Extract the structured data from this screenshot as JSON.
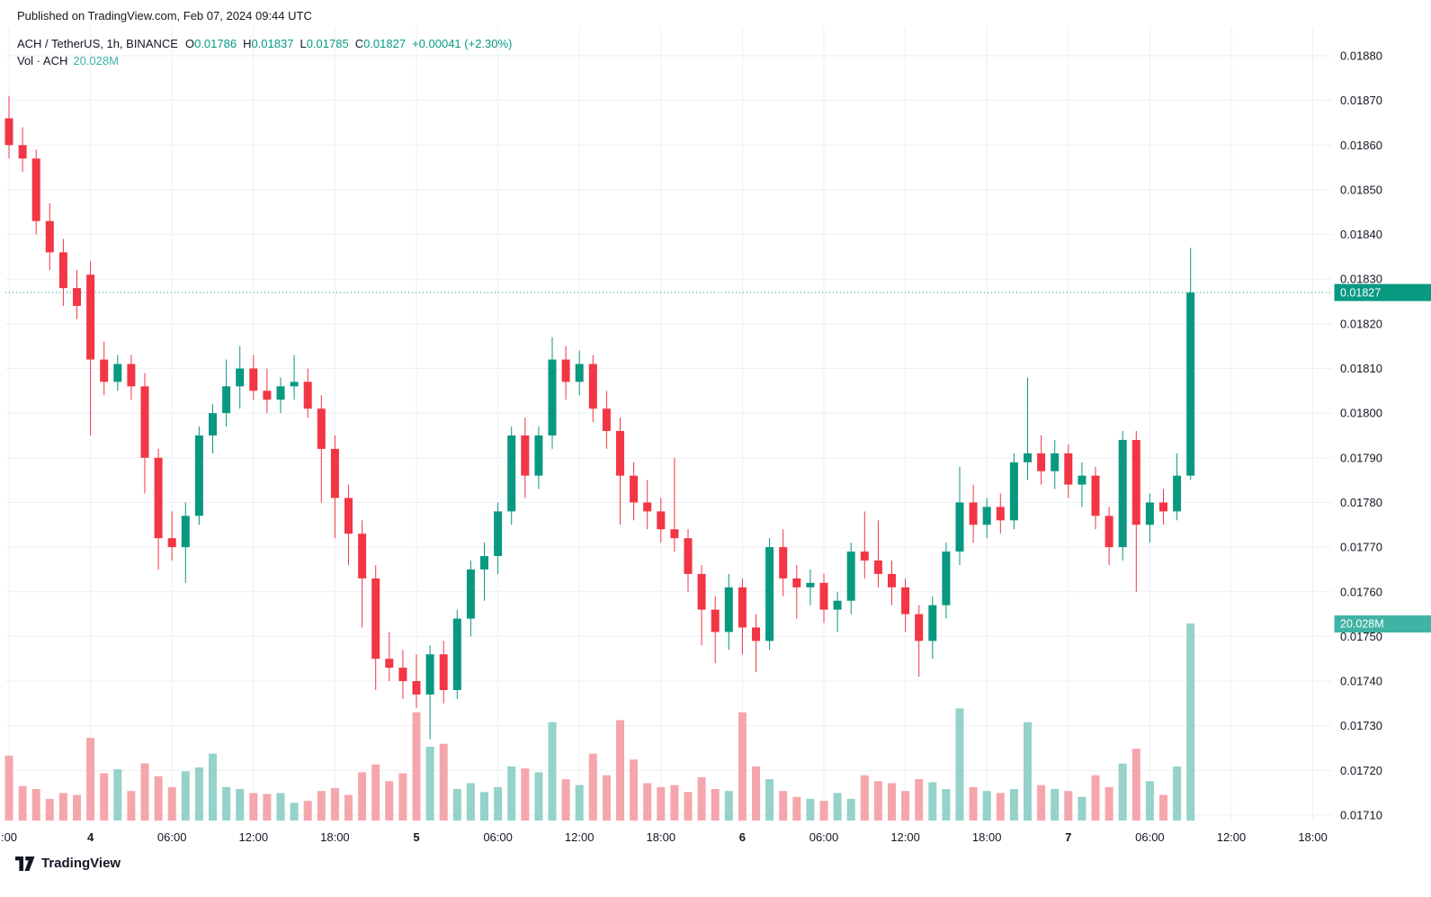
{
  "published_line": "Published on TradingView.com, Feb 07, 2024 09:44 UTC",
  "legend": {
    "o_label": "O",
    "h_label": "H",
    "l_label": "L",
    "c_label": "C",
    "vol_label": "Vol · ACH"
  },
  "footer": {
    "brand": "TradingView"
  },
  "colors": {
    "up": "#089981",
    "down": "#f23645",
    "vol_up": "#94d2ca",
    "vol_down": "#f5a6ad",
    "vol_badge": "#41b3a5",
    "price_badge": "#089981",
    "grid": "#edeff3",
    "axis_text": "#131722",
    "badge_text": "#ffffff"
  },
  "chart_data": {
    "type": "candlestick",
    "title": "ACH / TetherUS, 1h, BINANCE",
    "symbol": "ACH / TetherUS",
    "interval": "1h",
    "exchange": "BINANCE",
    "ohlc_display": {
      "open": "0.01786",
      "high": "0.01837",
      "low": "0.01785",
      "close": "0.01827",
      "change": "+0.00041 (+2.30%)"
    },
    "volume_display": "20.028M",
    "last_price": 0.01827,
    "volume_axis_max_m": 20.028,
    "price_axis_labels": [
      "0.01880",
      "0.01870",
      "0.01860",
      "0.01850",
      "0.01840",
      "0.01830",
      "0.01820",
      "0.01810",
      "0.01800",
      "0.01790",
      "0.01780",
      "0.01770",
      "0.01760",
      "0.01750",
      "0.01740",
      "0.01730",
      "0.01720",
      "0.01710"
    ],
    "time_axis": [
      {
        "index": 0,
        "label": ":00",
        "bold": false
      },
      {
        "index": 6,
        "label": "4",
        "bold": true
      },
      {
        "index": 12,
        "label": "06:00",
        "bold": false
      },
      {
        "index": 18,
        "label": "12:00",
        "bold": false
      },
      {
        "index": 24,
        "label": "18:00",
        "bold": false
      },
      {
        "index": 30,
        "label": "5",
        "bold": true
      },
      {
        "index": 36,
        "label": "06:00",
        "bold": false
      },
      {
        "index": 42,
        "label": "12:00",
        "bold": false
      },
      {
        "index": 48,
        "label": "18:00",
        "bold": false
      },
      {
        "index": 54,
        "label": "6",
        "bold": true
      },
      {
        "index": 60,
        "label": "06:00",
        "bold": false
      },
      {
        "index": 66,
        "label": "12:00",
        "bold": false
      },
      {
        "index": 72,
        "label": "18:00",
        "bold": false
      },
      {
        "index": 78,
        "label": "7",
        "bold": true
      },
      {
        "index": 84,
        "label": "06:00",
        "bold": false
      },
      {
        "index": 90,
        "label": "12:00",
        "bold": false
      },
      {
        "index": 96,
        "label": "18:00",
        "bold": false
      }
    ],
    "columns": [
      "time",
      "open",
      "high",
      "low",
      "close",
      "volume_m"
    ],
    "candles": [
      [
        "Feb 3 18:00",
        0.01866,
        0.01871,
        0.01857,
        0.0186,
        6.6
      ],
      [
        "Feb 3 19:00",
        0.0186,
        0.01864,
        0.01854,
        0.01857,
        3.5
      ],
      [
        "Feb 3 20:00",
        0.01857,
        0.01859,
        0.0184,
        0.01843,
        3.2
      ],
      [
        "Feb 3 21:00",
        0.01843,
        0.01847,
        0.01832,
        0.01836,
        2.2
      ],
      [
        "Feb 3 22:00",
        0.01836,
        0.01839,
        0.01824,
        0.01828,
        2.8
      ],
      [
        "Feb 3 23:00",
        0.01828,
        0.01832,
        0.01821,
        0.01824,
        2.6
      ],
      [
        "Feb 4 00:00",
        0.01831,
        0.01834,
        0.01795,
        0.01812,
        8.4
      ],
      [
        "Feb 4 01:00",
        0.01812,
        0.01816,
        0.01804,
        0.01807,
        4.8
      ],
      [
        "Feb 4 02:00",
        0.01807,
        0.01813,
        0.01805,
        0.01811,
        5.2
      ],
      [
        "Feb 4 03:00",
        0.01811,
        0.01813,
        0.01803,
        0.01806,
        3.0
      ],
      [
        "Feb 4 04:00",
        0.01806,
        0.01809,
        0.01782,
        0.0179,
        5.8
      ],
      [
        "Feb 4 05:00",
        0.0179,
        0.01792,
        0.01765,
        0.01772,
        4.5
      ],
      [
        "Feb 4 06:00",
        0.01772,
        0.01778,
        0.01767,
        0.0177,
        3.4
      ],
      [
        "Feb 4 07:00",
        0.0177,
        0.0178,
        0.01762,
        0.01777,
        5.0
      ],
      [
        "Feb 4 08:00",
        0.01777,
        0.01797,
        0.01775,
        0.01795,
        5.4
      ],
      [
        "Feb 4 09:00",
        0.01795,
        0.01802,
        0.01791,
        0.018,
        6.8
      ],
      [
        "Feb 4 10:00",
        0.018,
        0.01812,
        0.01797,
        0.01806,
        3.4
      ],
      [
        "Feb 4 11:00",
        0.01806,
        0.01815,
        0.01801,
        0.0181,
        3.2
      ],
      [
        "Feb 4 12:00",
        0.0181,
        0.01813,
        0.01803,
        0.01805,
        2.8
      ],
      [
        "Feb 4 13:00",
        0.01805,
        0.0181,
        0.018,
        0.01803,
        2.7
      ],
      [
        "Feb 4 14:00",
        0.01803,
        0.01808,
        0.018,
        0.01806,
        2.8
      ],
      [
        "Feb 4 15:00",
        0.01806,
        0.01813,
        0.01803,
        0.01807,
        1.8
      ],
      [
        "Feb 4 16:00",
        0.01807,
        0.0181,
        0.01799,
        0.01801,
        2.0
      ],
      [
        "Feb 4 17:00",
        0.01801,
        0.01804,
        0.0178,
        0.01792,
        3.0
      ],
      [
        "Feb 4 18:00",
        0.01792,
        0.01795,
        0.01772,
        0.01781,
        3.3
      ],
      [
        "Feb 4 19:00",
        0.01781,
        0.01784,
        0.01766,
        0.01773,
        2.6
      ],
      [
        "Feb 4 20:00",
        0.01773,
        0.01776,
        0.01752,
        0.01763,
        4.9
      ],
      [
        "Feb 4 21:00",
        0.01763,
        0.01766,
        0.01738,
        0.01745,
        5.7
      ],
      [
        "Feb 4 22:00",
        0.01745,
        0.01751,
        0.0174,
        0.01743,
        4.0
      ],
      [
        "Feb 4 23:00",
        0.01743,
        0.01747,
        0.01736,
        0.0174,
        4.8
      ],
      [
        "Feb 5 00:00",
        0.0174,
        0.01746,
        0.01734,
        0.01737,
        11.0
      ],
      [
        "Feb 5 01:00",
        0.01737,
        0.01748,
        0.01727,
        0.01746,
        7.5
      ],
      [
        "Feb 5 02:00",
        0.01746,
        0.01749,
        0.01735,
        0.01738,
        7.8
      ],
      [
        "Feb 5 03:00",
        0.01738,
        0.01756,
        0.01736,
        0.01754,
        3.2
      ],
      [
        "Feb 5 04:00",
        0.01754,
        0.01767,
        0.0175,
        0.01765,
        3.8
      ],
      [
        "Feb 5 05:00",
        0.01765,
        0.01771,
        0.01758,
        0.01768,
        2.9
      ],
      [
        "Feb 5 06:00",
        0.01768,
        0.0178,
        0.01764,
        0.01778,
        3.4
      ],
      [
        "Feb 5 07:00",
        0.01778,
        0.01797,
        0.01775,
        0.01795,
        5.5
      ],
      [
        "Feb 5 08:00",
        0.01795,
        0.01799,
        0.01781,
        0.01786,
        5.3
      ],
      [
        "Feb 5 09:00",
        0.01786,
        0.01797,
        0.01783,
        0.01795,
        4.9
      ],
      [
        "Feb 5 10:00",
        0.01795,
        0.01817,
        0.01792,
        0.01812,
        10.0
      ],
      [
        "Feb 5 11:00",
        0.01812,
        0.01815,
        0.01803,
        0.01807,
        4.2
      ],
      [
        "Feb 5 12:00",
        0.01807,
        0.01814,
        0.01804,
        0.01811,
        3.6
      ],
      [
        "Feb 5 13:00",
        0.01811,
        0.01813,
        0.01798,
        0.01801,
        6.8
      ],
      [
        "Feb 5 14:00",
        0.01801,
        0.01805,
        0.01792,
        0.01796,
        4.6
      ],
      [
        "Feb 5 15:00",
        0.01796,
        0.01799,
        0.01775,
        0.01786,
        10.2
      ],
      [
        "Feb 5 16:00",
        0.01786,
        0.01789,
        0.01776,
        0.0178,
        6.2
      ],
      [
        "Feb 5 17:00",
        0.0178,
        0.01785,
        0.01774,
        0.01778,
        3.8
      ],
      [
        "Feb 5 18:00",
        0.01778,
        0.01781,
        0.01771,
        0.01774,
        3.4
      ],
      [
        "Feb 5 19:00",
        0.01774,
        0.0179,
        0.01769,
        0.01772,
        3.6
      ],
      [
        "Feb 5 20:00",
        0.01772,
        0.01774,
        0.0176,
        0.01764,
        2.9
      ],
      [
        "Feb 5 21:00",
        0.01764,
        0.01766,
        0.01748,
        0.01756,
        4.4
      ],
      [
        "Feb 5 22:00",
        0.01756,
        0.01759,
        0.01744,
        0.01751,
        3.2
      ],
      [
        "Feb 5 23:00",
        0.01751,
        0.01764,
        0.01747,
        0.01761,
        3.0
      ],
      [
        "Feb 6 00:00",
        0.01761,
        0.01763,
        0.01746,
        0.01752,
        11.0
      ],
      [
        "Feb 6 01:00",
        0.01752,
        0.01755,
        0.01742,
        0.01749,
        5.5
      ],
      [
        "Feb 6 02:00",
        0.01749,
        0.01772,
        0.01747,
        0.0177,
        4.2
      ],
      [
        "Feb 6 03:00",
        0.0177,
        0.01774,
        0.01759,
        0.01763,
        3.0
      ],
      [
        "Feb 6 04:00",
        0.01763,
        0.01766,
        0.01754,
        0.01761,
        2.4
      ],
      [
        "Feb 6 05:00",
        0.01761,
        0.01765,
        0.01757,
        0.01762,
        2.2
      ],
      [
        "Feb 6 06:00",
        0.01762,
        0.01764,
        0.01753,
        0.01756,
        2.0
      ],
      [
        "Feb 6 07:00",
        0.01756,
        0.0176,
        0.01751,
        0.01758,
        2.8
      ],
      [
        "Feb 6 08:00",
        0.01758,
        0.01771,
        0.01755,
        0.01769,
        2.2
      ],
      [
        "Feb 6 09:00",
        0.01769,
        0.01778,
        0.01763,
        0.01767,
        4.6
      ],
      [
        "Feb 6 10:00",
        0.01767,
        0.01776,
        0.01761,
        0.01764,
        4.0
      ],
      [
        "Feb 6 11:00",
        0.01764,
        0.01767,
        0.01757,
        0.01761,
        3.8
      ],
      [
        "Feb 6 12:00",
        0.01761,
        0.01763,
        0.01751,
        0.01755,
        3.0
      ],
      [
        "Feb 6 13:00",
        0.01755,
        0.01757,
        0.01741,
        0.01749,
        4.2
      ],
      [
        "Feb 6 14:00",
        0.01749,
        0.01759,
        0.01745,
        0.01757,
        3.9
      ],
      [
        "Feb 6 15:00",
        0.01757,
        0.01771,
        0.01754,
        0.01769,
        3.2
      ],
      [
        "Feb 6 16:00",
        0.01769,
        0.01788,
        0.01766,
        0.0178,
        11.4
      ],
      [
        "Feb 6 17:00",
        0.0178,
        0.01784,
        0.01771,
        0.01775,
        3.4
      ],
      [
        "Feb 6 18:00",
        0.01775,
        0.01781,
        0.01772,
        0.01779,
        3.0
      ],
      [
        "Feb 6 19:00",
        0.01779,
        0.01782,
        0.01773,
        0.01776,
        2.8
      ],
      [
        "Feb 6 20:00",
        0.01776,
        0.01791,
        0.01774,
        0.01789,
        3.2
      ],
      [
        "Feb 6 21:00",
        0.01789,
        0.01808,
        0.01785,
        0.01791,
        10.0
      ],
      [
        "Feb 6 22:00",
        0.01791,
        0.01795,
        0.01784,
        0.01787,
        3.6
      ],
      [
        "Feb 6 23:00",
        0.01787,
        0.01794,
        0.01783,
        0.01791,
        3.2
      ],
      [
        "Feb 7 00:00",
        0.01791,
        0.01793,
        0.01781,
        0.01784,
        3.0
      ],
      [
        "Feb 7 01:00",
        0.01784,
        0.01789,
        0.01779,
        0.01786,
        2.4
      ],
      [
        "Feb 7 02:00",
        0.01786,
        0.01788,
        0.01774,
        0.01777,
        4.6
      ],
      [
        "Feb 7 03:00",
        0.01777,
        0.01779,
        0.01766,
        0.0177,
        3.4
      ],
      [
        "Feb 7 04:00",
        0.0177,
        0.01796,
        0.01767,
        0.01794,
        5.8
      ],
      [
        "Feb 7 05:00",
        0.01794,
        0.01796,
        0.0176,
        0.01775,
        7.3
      ],
      [
        "Feb 7 06:00",
        0.01775,
        0.01782,
        0.01771,
        0.0178,
        4.0
      ],
      [
        "Feb 7 07:00",
        0.0178,
        0.01783,
        0.01775,
        0.01778,
        2.6
      ],
      [
        "Feb 7 08:00",
        0.01778,
        0.01791,
        0.01776,
        0.01786,
        5.5
      ],
      [
        "Feb 7 09:00",
        0.01786,
        0.01837,
        0.01785,
        0.01827,
        20.028
      ]
    ]
  }
}
